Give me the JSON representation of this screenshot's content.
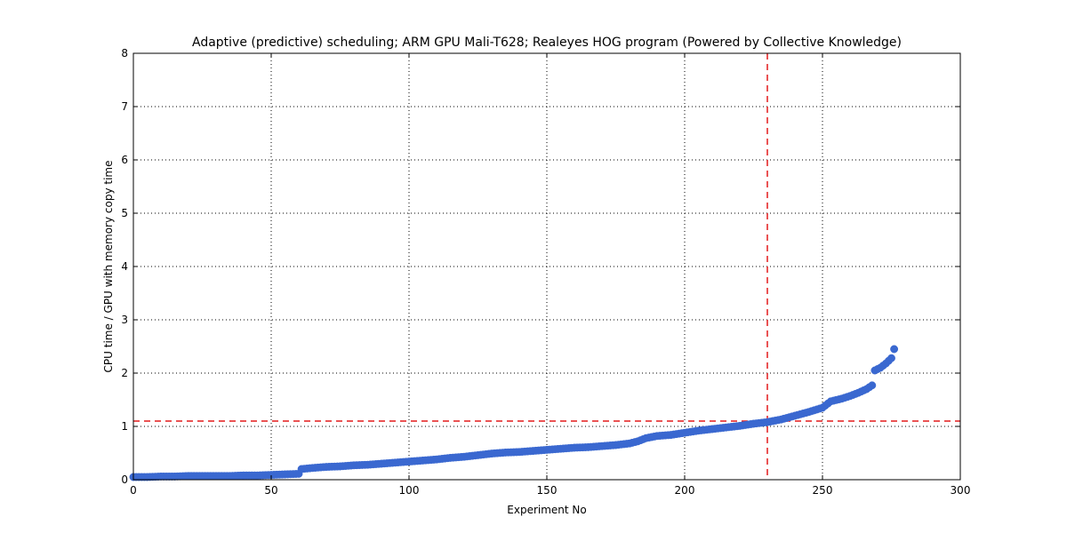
{
  "colors": {
    "marker": "#3a68d0",
    "reference_line": "#e31a1c",
    "grid": "#000000",
    "frame": "#000000",
    "background": "#ffffff"
  },
  "chart_data": {
    "type": "scatter",
    "title": "Adaptive (predictive) scheduling; ARM GPU Mali-T628; Realeyes HOG program (Powered by Collective Knowledge)",
    "xlabel": "Experiment No",
    "ylabel": "CPU time / GPU with memory copy time",
    "xlim": [
      0,
      300
    ],
    "ylim": [
      0,
      8
    ],
    "xticks": [
      "0",
      "50",
      "100",
      "150",
      "200",
      "250",
      "300"
    ],
    "yticks": [
      "0",
      "1",
      "2",
      "3",
      "4",
      "5",
      "6",
      "7",
      "8"
    ],
    "grid": true,
    "reference_lines": {
      "vertical_x": 230,
      "horizontal_y": 1.1,
      "style": "dashed"
    },
    "series": [
      {
        "marker": "circle",
        "points": [
          [
            0,
            0.05
          ],
          [
            5,
            0.05
          ],
          [
            10,
            0.06
          ],
          [
            15,
            0.06
          ],
          [
            20,
            0.07
          ],
          [
            25,
            0.07
          ],
          [
            30,
            0.07
          ],
          [
            35,
            0.07
          ],
          [
            40,
            0.08
          ],
          [
            45,
            0.08
          ],
          [
            50,
            0.09
          ],
          [
            55,
            0.1
          ],
          [
            60,
            0.11
          ],
          [
            61,
            0.2
          ],
          [
            65,
            0.22
          ],
          [
            70,
            0.24
          ],
          [
            75,
            0.25
          ],
          [
            80,
            0.27
          ],
          [
            85,
            0.28
          ],
          [
            90,
            0.3
          ],
          [
            95,
            0.32
          ],
          [
            100,
            0.34
          ],
          [
            105,
            0.36
          ],
          [
            110,
            0.38
          ],
          [
            115,
            0.41
          ],
          [
            120,
            0.43
          ],
          [
            125,
            0.46
          ],
          [
            130,
            0.49
          ],
          [
            135,
            0.51
          ],
          [
            140,
            0.52
          ],
          [
            145,
            0.54
          ],
          [
            150,
            0.56
          ],
          [
            155,
            0.58
          ],
          [
            160,
            0.6
          ],
          [
            165,
            0.61
          ],
          [
            170,
            0.63
          ],
          [
            175,
            0.65
          ],
          [
            180,
            0.68
          ],
          [
            183,
            0.72
          ],
          [
            186,
            0.78
          ],
          [
            190,
            0.82
          ],
          [
            195,
            0.84
          ],
          [
            200,
            0.88
          ],
          [
            205,
            0.92
          ],
          [
            210,
            0.95
          ],
          [
            215,
            0.98
          ],
          [
            220,
            1.01
          ],
          [
            225,
            1.05
          ],
          [
            230,
            1.08
          ],
          [
            235,
            1.13
          ],
          [
            240,
            1.2
          ],
          [
            245,
            1.27
          ],
          [
            250,
            1.35
          ],
          [
            253,
            1.47
          ],
          [
            257,
            1.52
          ],
          [
            260,
            1.57
          ],
          [
            263,
            1.63
          ],
          [
            266,
            1.7
          ],
          [
            268,
            1.77
          ],
          [
            269,
            2.05
          ],
          [
            271,
            2.1
          ],
          [
            273,
            2.18
          ],
          [
            275,
            2.28
          ],
          [
            276,
            2.45
          ]
        ]
      }
    ]
  }
}
